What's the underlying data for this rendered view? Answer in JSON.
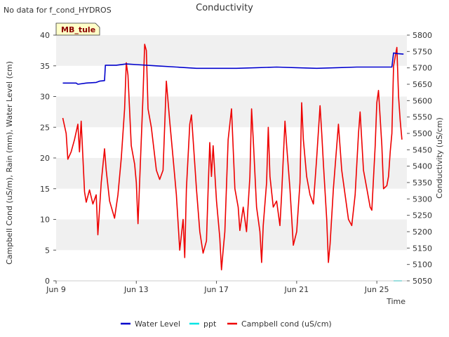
{
  "header": {
    "notice": "No data for f_cond_HYDROS",
    "title": "Conductivity"
  },
  "station_tag": "MB_tule",
  "colors": {
    "water_level": "#0000cc",
    "ppt": "#00e5e5",
    "campbell_cond": "#ee0000",
    "band": "#f0f0f0",
    "tag_bg": "#ffffc8"
  },
  "chart_data": {
    "type": "line",
    "title": "Conductivity",
    "xlabel": "Time",
    "ylabel_left": "Campbell Cond (uS/m), Rain (mm), Water Level (cm)",
    "ylabel_right": "Conductivity (uS/cm)",
    "xlim": [
      "2023-06-09",
      "2023-06-26 12:00"
    ],
    "ylim_left": [
      0,
      40
    ],
    "ylim_right": [
      5050,
      5800
    ],
    "x_ticks": [
      "Jun 9",
      "Jun 13",
      "Jun 17",
      "Jun 21",
      "Jun 25"
    ],
    "y_ticks_left": [
      "0",
      "5",
      "10",
      "15",
      "20",
      "25",
      "30",
      "35",
      "40"
    ],
    "y_ticks_right": [
      "5050",
      "5100",
      "5150",
      "5200",
      "5250",
      "5300",
      "5350",
      "5400",
      "5450",
      "5500",
      "5550",
      "5600",
      "5650",
      "5700",
      "5750",
      "5800"
    ],
    "grid": "horizontal alternating bands",
    "legend": "bottom-center",
    "series": [
      {
        "name": "Water Level",
        "axis": "left",
        "points": [
          [
            "2023-06-09 08:00",
            32.2
          ],
          [
            "2023-06-10",
            32.2
          ],
          [
            "2023-06-10 02:00",
            32.0
          ],
          [
            "2023-06-10 12:00",
            32.2
          ],
          [
            "2023-06-11",
            32.3
          ],
          [
            "2023-06-11 04:00",
            32.5
          ],
          [
            "2023-06-11 10:00",
            32.6
          ],
          [
            "2023-06-11 11:00",
            35.1
          ],
          [
            "2023-06-12",
            35.1
          ],
          [
            "2023-06-12 12:00",
            35.3
          ],
          [
            "2023-06-13",
            35.2
          ],
          [
            "2023-06-14",
            35.0
          ],
          [
            "2023-06-15",
            34.8
          ],
          [
            "2023-06-16",
            34.6
          ],
          [
            "2023-06-17",
            34.6
          ],
          [
            "2023-06-18",
            34.6
          ],
          [
            "2023-06-19",
            34.7
          ],
          [
            "2023-06-20",
            34.8
          ],
          [
            "2023-06-21",
            34.7
          ],
          [
            "2023-06-22",
            34.6
          ],
          [
            "2023-06-23",
            34.7
          ],
          [
            "2023-06-24",
            34.8
          ],
          [
            "2023-06-25",
            34.8
          ],
          [
            "2023-06-25 18:00",
            34.8
          ],
          [
            "2023-06-25 20:00",
            37.1
          ],
          [
            "2023-06-26",
            37.0
          ],
          [
            "2023-06-26 08:00",
            36.9
          ]
        ]
      },
      {
        "name": "ppt",
        "axis": "left",
        "points": [
          [
            "2023-06-25 20:00",
            0.0
          ],
          [
            "2023-06-26 06:00",
            0.0
          ]
        ]
      },
      {
        "name": "Campbell cond (uS/cm)",
        "axis": "left",
        "points": [
          [
            "2023-06-09 08:00",
            26.5
          ],
          [
            "2023-06-09 12:00",
            24.0
          ],
          [
            "2023-06-09 14:00",
            19.8
          ],
          [
            "2023-06-09 18:00",
            21.0
          ],
          [
            "2023-06-09 22:00",
            23.0
          ],
          [
            "2023-06-10 02:00",
            25.5
          ],
          [
            "2023-06-10 04:00",
            21.0
          ],
          [
            "2023-06-10 06:00",
            26.0
          ],
          [
            "2023-06-10 10:00",
            14.5
          ],
          [
            "2023-06-10 12:00",
            12.8
          ],
          [
            "2023-06-10 16:00",
            14.8
          ],
          [
            "2023-06-10 20:00",
            12.5
          ],
          [
            "2023-06-11",
            14.0
          ],
          [
            "2023-06-11 02:00",
            7.5
          ],
          [
            "2023-06-11 06:00",
            16.0
          ],
          [
            "2023-06-11 10:00",
            21.5
          ],
          [
            "2023-06-11 12:00",
            18.0
          ],
          [
            "2023-06-11 16:00",
            13.0
          ],
          [
            "2023-06-11 22:00",
            10.2
          ],
          [
            "2023-06-12 02:00",
            14.0
          ],
          [
            "2023-06-12 06:00",
            20.0
          ],
          [
            "2023-06-12 10:00",
            28.0
          ],
          [
            "2023-06-12 12:00",
            35.5
          ],
          [
            "2023-06-12 14:00",
            33.5
          ],
          [
            "2023-06-12 18:00",
            22.0
          ],
          [
            "2023-06-12 22:00",
            19.0
          ],
          [
            "2023-06-13",
            16.0
          ],
          [
            "2023-06-13 02:00",
            9.3
          ],
          [
            "2023-06-13 06:00",
            23.0
          ],
          [
            "2023-06-13 08:00",
            30.0
          ],
          [
            "2023-06-13 10:00",
            38.5
          ],
          [
            "2023-06-13 12:00",
            37.5
          ],
          [
            "2023-06-13 14:00",
            28.0
          ],
          [
            "2023-06-13 18:00",
            25.0
          ],
          [
            "2023-06-14",
            18.0
          ],
          [
            "2023-06-14 04:00",
            16.5
          ],
          [
            "2023-06-14 08:00",
            18.0
          ],
          [
            "2023-06-14 12:00",
            32.5
          ],
          [
            "2023-06-14 16:00",
            26.0
          ],
          [
            "2023-06-14 20:00",
            20.0
          ],
          [
            "2023-06-15",
            14.0
          ],
          [
            "2023-06-15 04:00",
            5.0
          ],
          [
            "2023-06-15 08:00",
            10.0
          ],
          [
            "2023-06-15 10:00",
            3.8
          ],
          [
            "2023-06-15 12:00",
            15.0
          ],
          [
            "2023-06-15 16:00",
            25.5
          ],
          [
            "2023-06-15 18:00",
            27.0
          ],
          [
            "2023-06-16",
            15.0
          ],
          [
            "2023-06-16 04:00",
            8.0
          ],
          [
            "2023-06-16 08:00",
            4.5
          ],
          [
            "2023-06-16 12:00",
            6.5
          ],
          [
            "2023-06-16 14:00",
            15.0
          ],
          [
            "2023-06-16 16:00",
            22.5
          ],
          [
            "2023-06-16 18:00",
            17.0
          ],
          [
            "2023-06-16 20:00",
            22.0
          ],
          [
            "2023-06-17",
            13.0
          ],
          [
            "2023-06-17 04:00",
            7.0
          ],
          [
            "2023-06-17 06:00",
            1.8
          ],
          [
            "2023-06-17 08:00",
            5.0
          ],
          [
            "2023-06-17 10:00",
            8.0
          ],
          [
            "2023-06-17 14:00",
            23.0
          ],
          [
            "2023-06-17 18:00",
            28.0
          ],
          [
            "2023-06-17 22:00",
            15.0
          ],
          [
            "2023-06-18 02:00",
            12.0
          ],
          [
            "2023-06-18 04:00",
            8.2
          ],
          [
            "2023-06-18 08:00",
            12.0
          ],
          [
            "2023-06-18 12:00",
            8.0
          ],
          [
            "2023-06-18 16:00",
            17.0
          ],
          [
            "2023-06-18 18:00",
            28.0
          ],
          [
            "2023-06-18 20:00",
            23.0
          ],
          [
            "2023-06-19",
            12.0
          ],
          [
            "2023-06-19 04:00",
            8.0
          ],
          [
            "2023-06-19 06:00",
            3.0
          ],
          [
            "2023-06-19 08:00",
            9.0
          ],
          [
            "2023-06-19 12:00",
            16.0
          ],
          [
            "2023-06-19 14:00",
            25.0
          ],
          [
            "2023-06-19 16:00",
            17.0
          ],
          [
            "2023-06-19 20:00",
            12.0
          ],
          [
            "2023-06-20",
            13.0
          ],
          [
            "2023-06-20 04:00",
            9.0
          ],
          [
            "2023-06-20 06:00",
            14.0
          ],
          [
            "2023-06-20 10:00",
            26.0
          ],
          [
            "2023-06-20 12:00",
            22.0
          ],
          [
            "2023-06-20 16:00",
            15.0
          ],
          [
            "2023-06-20 20:00",
            5.8
          ],
          [
            "2023-06-21",
            8.0
          ],
          [
            "2023-06-21 04:00",
            16.0
          ],
          [
            "2023-06-21 06:00",
            29.0
          ],
          [
            "2023-06-21 08:00",
            23.0
          ],
          [
            "2023-06-21 12:00",
            17.0
          ],
          [
            "2023-06-21 16:00",
            14.0
          ],
          [
            "2023-06-21 20:00",
            12.5
          ],
          [
            "2023-06-22",
            20.0
          ],
          [
            "2023-06-22 04:00",
            28.5
          ],
          [
            "2023-06-22 06:00",
            24.0
          ],
          [
            "2023-06-22 08:00",
            19.0
          ],
          [
            "2023-06-22 12:00",
            10.0
          ],
          [
            "2023-06-22 14:00",
            3.0
          ],
          [
            "2023-06-22 16:00",
            6.0
          ],
          [
            "2023-06-22 20:00",
            15.0
          ],
          [
            "2023-06-23",
            22.0
          ],
          [
            "2023-06-23 02:00",
            25.5
          ],
          [
            "2023-06-23 06:00",
            18.0
          ],
          [
            "2023-06-23 10:00",
            14.0
          ],
          [
            "2023-06-23 14:00",
            10.0
          ],
          [
            "2023-06-23 18:00",
            9.0
          ],
          [
            "2023-06-23 22:00",
            14.0
          ],
          [
            "2023-06-24 02:00",
            24.0
          ],
          [
            "2023-06-24 04:00",
            27.5
          ],
          [
            "2023-06-24 08:00",
            18.0
          ],
          [
            "2023-06-24 12:00",
            15.0
          ],
          [
            "2023-06-24 16:00",
            12.0
          ],
          [
            "2023-06-24 18:00",
            11.5
          ],
          [
            "2023-06-24 22:00",
            22.0
          ],
          [
            "2023-06-25",
            29.0
          ],
          [
            "2023-06-25 02:00",
            31.0
          ],
          [
            "2023-06-25 06:00",
            22.0
          ],
          [
            "2023-06-25 08:00",
            15.0
          ],
          [
            "2023-06-25 12:00",
            15.5
          ],
          [
            "2023-06-25 14:00",
            17.0
          ],
          [
            "2023-06-25 16:00",
            21.0
          ],
          [
            "2023-06-25 18:00",
            24.0
          ],
          [
            "2023-06-25 20:00",
            35.0
          ],
          [
            "2023-06-26",
            38.0
          ],
          [
            "2023-06-26 02:00",
            30.0
          ],
          [
            "2023-06-26 04:00",
            26.0
          ],
          [
            "2023-06-26 06:00",
            23.0
          ]
        ]
      }
    ]
  }
}
